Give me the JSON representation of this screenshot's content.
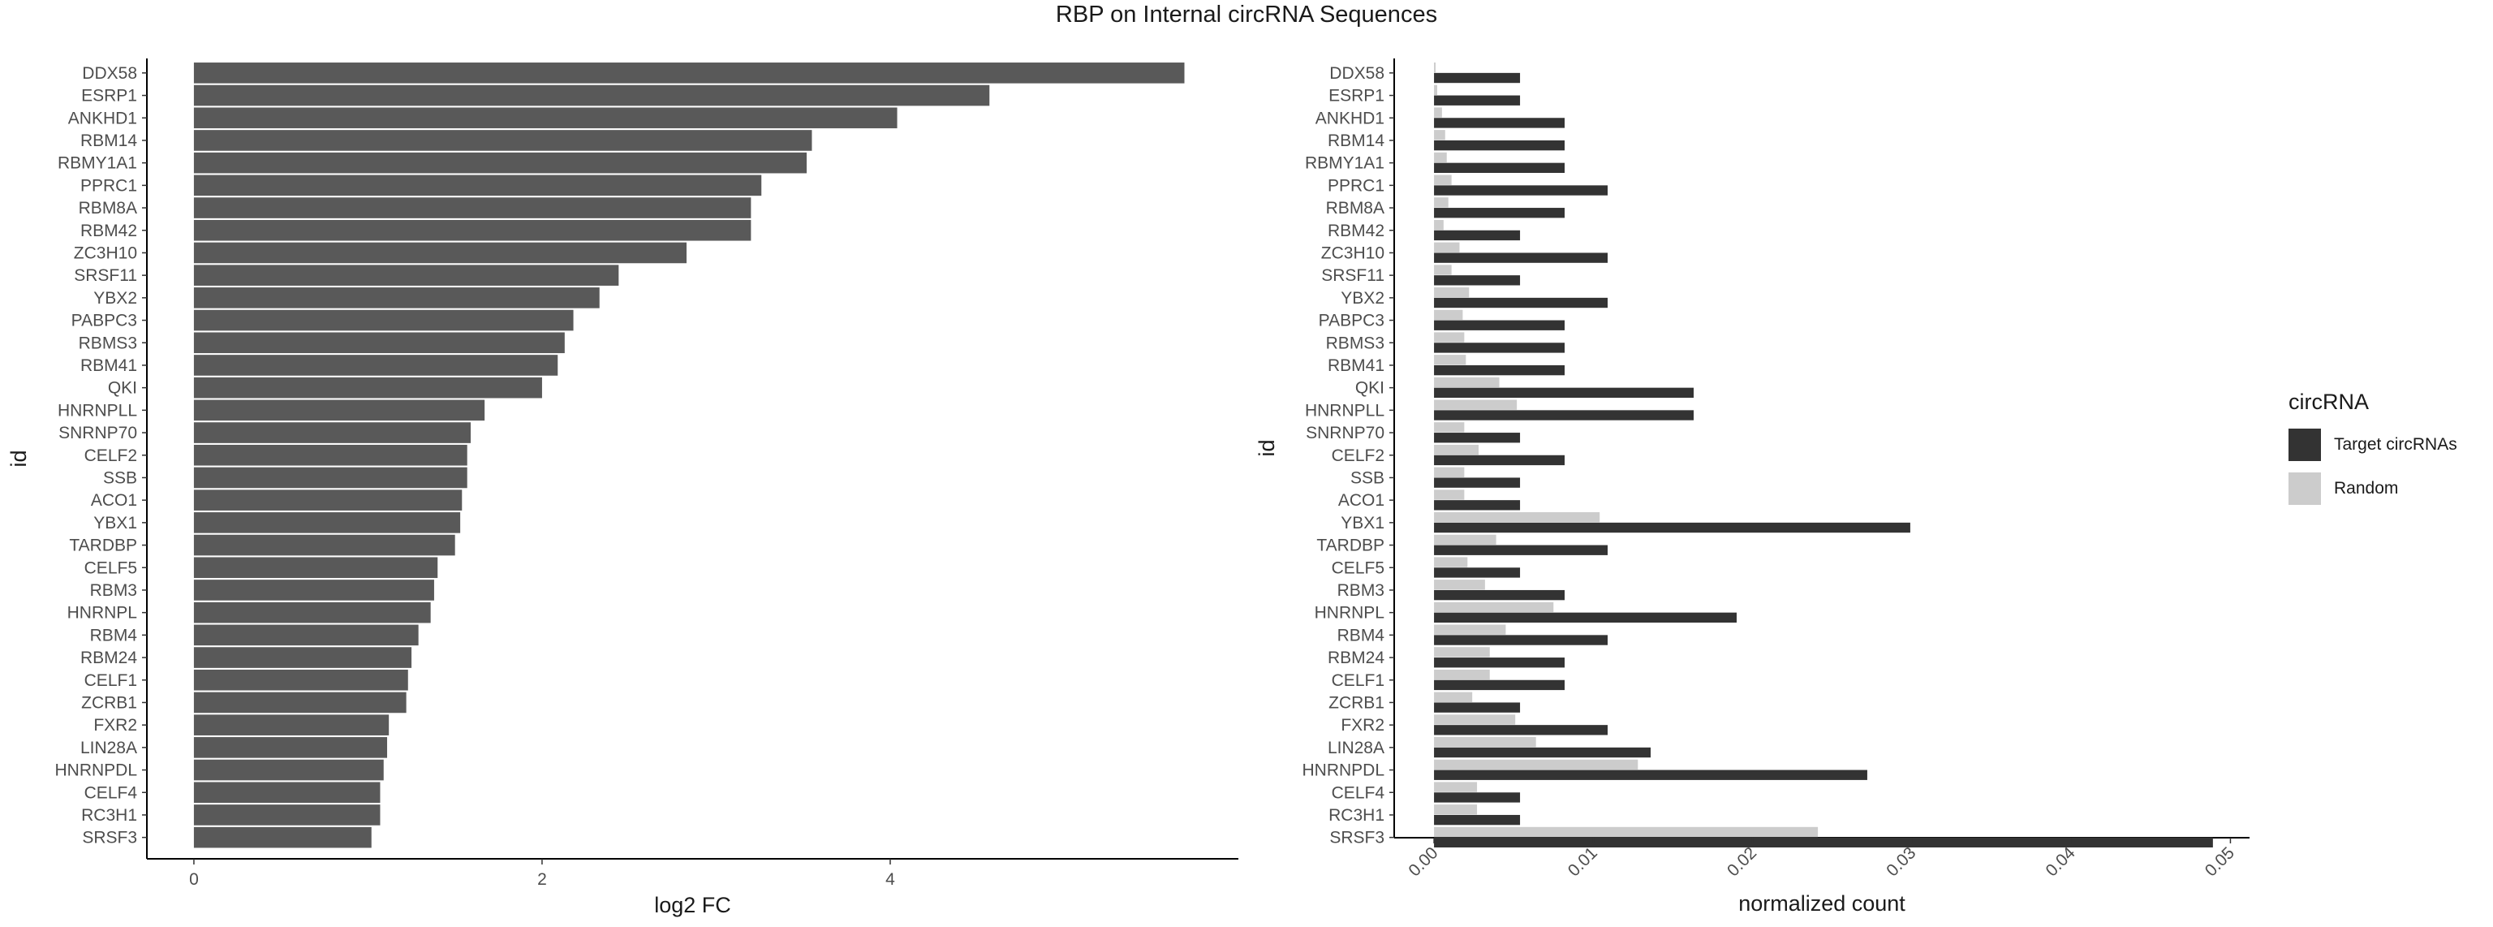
{
  "title": "RBP on Internal circRNA Sequences",
  "colors": {
    "left_bar": "#595959",
    "target": "#333333",
    "random": "#cccccc",
    "axis": "#000000",
    "tick_label": "#4d4d4d"
  },
  "chart_data": [
    {
      "type": "bar",
      "orientation": "horizontal",
      "xlabel": "log2 FC",
      "ylabel": "id",
      "xlim": [
        -0.27,
        6.0
      ],
      "xticks": [
        0,
        2,
        4
      ],
      "xtick_labels": [
        "0",
        "2",
        "4"
      ],
      "categories": [
        "DDX58",
        "ESRP1",
        "ANKHD1",
        "RBM14",
        "RBMY1A1",
        "PPRC1",
        "RBM8A",
        "RBM42",
        "ZC3H10",
        "SRSF11",
        "YBX2",
        "PABPC3",
        "RBMS3",
        "RBM41",
        "QKI",
        "HNRNPLL",
        "SNRNP70",
        "CELF2",
        "SSB",
        "ACO1",
        "YBX1",
        "TARDBP",
        "CELF5",
        "RBM3",
        "HNRNPL",
        "RBM4",
        "RBM24",
        "CELF1",
        "ZCRB1",
        "FXR2",
        "LIN28A",
        "HNRNPDL",
        "CELF4",
        "RC3H1",
        "SRSF3"
      ],
      "values": [
        5.69,
        4.57,
        4.04,
        3.55,
        3.52,
        3.26,
        3.2,
        3.2,
        2.83,
        2.44,
        2.33,
        2.18,
        2.13,
        2.09,
        2.0,
        1.67,
        1.59,
        1.57,
        1.57,
        1.54,
        1.53,
        1.5,
        1.4,
        1.38,
        1.36,
        1.29,
        1.25,
        1.23,
        1.22,
        1.12,
        1.11,
        1.09,
        1.07,
        1.07,
        1.02
      ],
      "grid": false
    },
    {
      "type": "bar",
      "orientation": "horizontal",
      "xlabel": "normalized count",
      "ylabel": "id",
      "xlim": [
        -0.0025,
        0.0512
      ],
      "xticks": [
        0,
        0.01,
        0.02,
        0.03,
        0.04,
        0.05
      ],
      "xtick_labels": [
        "0.00",
        "0.01",
        "0.02",
        "0.03",
        "0.04",
        "0.05"
      ],
      "categories": [
        "DDX58",
        "ESRP1",
        "ANKHD1",
        "RBM14",
        "RBMY1A1",
        "PPRC1",
        "RBM8A",
        "RBM42",
        "ZC3H10",
        "SRSF11",
        "YBX2",
        "PABPC3",
        "RBMS3",
        "RBM41",
        "QKI",
        "HNRNPLL",
        "SNRNP70",
        "CELF2",
        "SSB",
        "ACO1",
        "YBX1",
        "TARDBP",
        "CELF5",
        "RBM3",
        "HNRNPL",
        "RBM4",
        "RBM24",
        "CELF1",
        "ZCRB1",
        "FXR2",
        "LIN28A",
        "HNRNPDL",
        "CELF4",
        "RC3H1",
        "SRSF3"
      ],
      "series": [
        {
          "name": "Target circRNAs",
          "color": "#333333",
          "values": [
            0.0054,
            0.0054,
            0.0082,
            0.0082,
            0.0082,
            0.0109,
            0.0082,
            0.0054,
            0.0109,
            0.0054,
            0.0109,
            0.0082,
            0.0082,
            0.0082,
            0.0163,
            0.0163,
            0.0054,
            0.0082,
            0.0054,
            0.0054,
            0.0299,
            0.0109,
            0.0054,
            0.0082,
            0.019,
            0.0109,
            0.0082,
            0.0082,
            0.0054,
            0.0109,
            0.0136,
            0.0272,
            0.0054,
            0.0054,
            0.0489
          ]
        },
        {
          "name": "Random",
          "color": "#cccccc",
          "values": [
            0.0001,
            0.0002,
            0.0005,
            0.0007,
            0.0008,
            0.0011,
            0.0009,
            0.0006,
            0.0016,
            0.0011,
            0.0022,
            0.0018,
            0.0019,
            0.002,
            0.0041,
            0.0052,
            0.0019,
            0.0028,
            0.0019,
            0.0019,
            0.0104,
            0.0039,
            0.0021,
            0.0032,
            0.0075,
            0.0045,
            0.0035,
            0.0035,
            0.0024,
            0.0051,
            0.0064,
            0.0128,
            0.0027,
            0.0027,
            0.0241
          ]
        }
      ],
      "legend": {
        "title": "circRNA",
        "position": "right",
        "labels": [
          "Target circRNAs",
          "Random"
        ]
      },
      "grid": false
    }
  ]
}
